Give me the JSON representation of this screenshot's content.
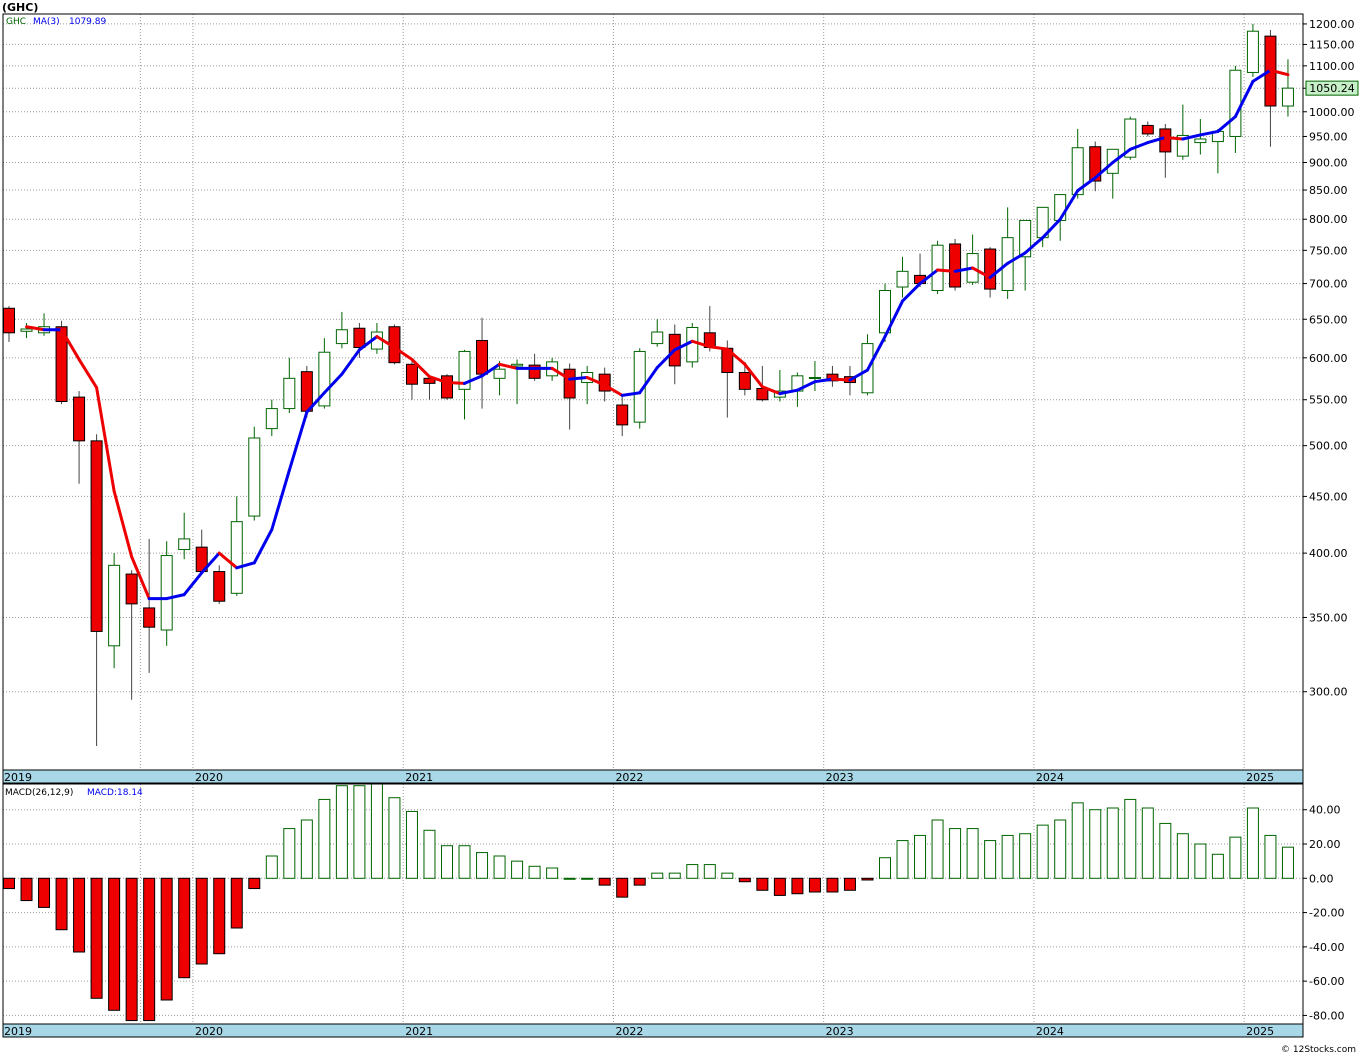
{
  "header": {
    "title": "(GHC)",
    "legend_ticker": "GHC",
    "legend_ma": "MA(3)",
    "legend_ma_value": "1079.89",
    "last_price": "1050.24",
    "macd_label": "MACD(26,12,9)",
    "macd_value": "MACD:18.14",
    "watermark": "© 12Stocks.com"
  },
  "colors": {
    "up_body": "#ffffff",
    "up_border": "#006400",
    "down_body": "#ee0000",
    "ma_up": "#0000ee",
    "ma_down": "#ee0000",
    "axis_bar": "#a8d8e8",
    "grid": "#9a9a9a",
    "price_tag_bg": "#c8f0c8"
  },
  "chart_data": [
    {
      "type": "candlestick",
      "title": "(GHC)",
      "scale": "log",
      "ylim": [
        255,
        1225
      ],
      "y_ticks": [
        300,
        350,
        400,
        450,
        500,
        550,
        600,
        650,
        700,
        750,
        800,
        850,
        900,
        950,
        1000,
        1050,
        1100,
        1150,
        1200
      ],
      "x_labels": [
        "2019",
        "2020",
        "2021",
        "2022",
        "2023",
        "2024",
        "2025"
      ],
      "x_label_months": [
        8,
        11,
        23,
        35,
        47,
        59,
        71
      ],
      "candles": [
        {
          "o": 665,
          "h": 668,
          "l": 620,
          "c": 632
        },
        {
          "o": 634,
          "h": 645,
          "l": 625,
          "c": 637
        },
        {
          "o": 632,
          "h": 658,
          "l": 628,
          "c": 640
        },
        {
          "o": 640,
          "h": 648,
          "l": 545,
          "c": 548
        },
        {
          "o": 553,
          "h": 560,
          "l": 462,
          "c": 505
        },
        {
          "o": 505,
          "h": 512,
          "l": 268,
          "c": 340
        },
        {
          "o": 330,
          "h": 400,
          "l": 315,
          "c": 390
        },
        {
          "o": 383,
          "h": 386,
          "l": 295,
          "c": 360
        },
        {
          "o": 357,
          "h": 412,
          "l": 312,
          "c": 343
        },
        {
          "o": 341,
          "h": 410,
          "l": 330,
          "c": 398
        },
        {
          "o": 403,
          "h": 435,
          "l": 395,
          "c": 412
        },
        {
          "o": 405,
          "h": 420,
          "l": 383,
          "c": 385
        },
        {
          "o": 385,
          "h": 390,
          "l": 360,
          "c": 362
        },
        {
          "o": 368,
          "h": 450,
          "l": 366,
          "c": 427
        },
        {
          "o": 432,
          "h": 520,
          "l": 428,
          "c": 508
        },
        {
          "o": 518,
          "h": 550,
          "l": 510,
          "c": 540
        },
        {
          "o": 540,
          "h": 600,
          "l": 535,
          "c": 575
        },
        {
          "o": 583,
          "h": 590,
          "l": 530,
          "c": 537
        },
        {
          "o": 543,
          "h": 625,
          "l": 540,
          "c": 607
        },
        {
          "o": 618,
          "h": 660,
          "l": 612,
          "c": 636
        },
        {
          "o": 638,
          "h": 645,
          "l": 600,
          "c": 613
        },
        {
          "o": 611,
          "h": 645,
          "l": 605,
          "c": 633
        },
        {
          "o": 640,
          "h": 643,
          "l": 592,
          "c": 594
        },
        {
          "o": 592,
          "h": 596,
          "l": 550,
          "c": 568
        },
        {
          "o": 575,
          "h": 578,
          "l": 550,
          "c": 569
        },
        {
          "o": 578,
          "h": 580,
          "l": 550,
          "c": 552
        },
        {
          "o": 562,
          "h": 610,
          "l": 528,
          "c": 608
        },
        {
          "o": 622,
          "h": 652,
          "l": 540,
          "c": 580
        },
        {
          "o": 575,
          "h": 596,
          "l": 555,
          "c": 586
        },
        {
          "o": 590,
          "h": 598,
          "l": 545,
          "c": 592
        },
        {
          "o": 591,
          "h": 605,
          "l": 572,
          "c": 575
        },
        {
          "o": 578,
          "h": 600,
          "l": 572,
          "c": 595
        },
        {
          "o": 586,
          "h": 593,
          "l": 517,
          "c": 552
        },
        {
          "o": 570,
          "h": 590,
          "l": 545,
          "c": 582
        },
        {
          "o": 580,
          "h": 588,
          "l": 548,
          "c": 560
        },
        {
          "o": 544,
          "h": 553,
          "l": 510,
          "c": 522
        },
        {
          "o": 525,
          "h": 612,
          "l": 518,
          "c": 608
        },
        {
          "o": 618,
          "h": 650,
          "l": 614,
          "c": 633
        },
        {
          "o": 630,
          "h": 643,
          "l": 568,
          "c": 590
        },
        {
          "o": 595,
          "h": 645,
          "l": 588,
          "c": 639
        },
        {
          "o": 632,
          "h": 668,
          "l": 608,
          "c": 613
        },
        {
          "o": 612,
          "h": 622,
          "l": 530,
          "c": 582
        },
        {
          "o": 582,
          "h": 595,
          "l": 555,
          "c": 562
        },
        {
          "o": 563,
          "h": 590,
          "l": 548,
          "c": 550
        },
        {
          "o": 553,
          "h": 585,
          "l": 548,
          "c": 560
        },
        {
          "o": 560,
          "h": 582,
          "l": 542,
          "c": 578
        },
        {
          "o": 575,
          "h": 596,
          "l": 560,
          "c": 576
        },
        {
          "o": 580,
          "h": 590,
          "l": 565,
          "c": 572
        },
        {
          "o": 577,
          "h": 590,
          "l": 555,
          "c": 570
        },
        {
          "o": 558,
          "h": 630,
          "l": 555,
          "c": 618
        },
        {
          "o": 632,
          "h": 700,
          "l": 620,
          "c": 690
        },
        {
          "o": 695,
          "h": 740,
          "l": 680,
          "c": 718
        },
        {
          "o": 712,
          "h": 745,
          "l": 695,
          "c": 700
        },
        {
          "o": 690,
          "h": 765,
          "l": 685,
          "c": 758
        },
        {
          "o": 760,
          "h": 768,
          "l": 690,
          "c": 695
        },
        {
          "o": 702,
          "h": 775,
          "l": 698,
          "c": 745
        },
        {
          "o": 752,
          "h": 755,
          "l": 680,
          "c": 692
        },
        {
          "o": 690,
          "h": 820,
          "l": 678,
          "c": 770
        },
        {
          "o": 740,
          "h": 798,
          "l": 690,
          "c": 798
        },
        {
          "o": 770,
          "h": 820,
          "l": 755,
          "c": 820
        },
        {
          "o": 798,
          "h": 842,
          "l": 765,
          "c": 842
        },
        {
          "o": 842,
          "h": 965,
          "l": 835,
          "c": 928
        },
        {
          "o": 930,
          "h": 940,
          "l": 848,
          "c": 866
        },
        {
          "o": 880,
          "h": 925,
          "l": 835,
          "c": 925
        },
        {
          "o": 910,
          "h": 990,
          "l": 905,
          "c": 985
        },
        {
          "o": 972,
          "h": 980,
          "l": 950,
          "c": 955
        },
        {
          "o": 965,
          "h": 975,
          "l": 872,
          "c": 920
        },
        {
          "o": 912,
          "h": 1015,
          "l": 905,
          "c": 952
        },
        {
          "o": 938,
          "h": 985,
          "l": 915,
          "c": 945
        },
        {
          "o": 940,
          "h": 965,
          "l": 880,
          "c": 960
        },
        {
          "o": 950,
          "h": 1100,
          "l": 918,
          "c": 1090
        },
        {
          "o": 1085,
          "h": 1200,
          "l": 1075,
          "c": 1182
        },
        {
          "o": 1170,
          "h": 1185,
          "l": 930,
          "c": 1012
        },
        {
          "o": 1012,
          "h": 1115,
          "l": 990,
          "c": 1050.24
        }
      ],
      "ma3": [
        null,
        640,
        636,
        636,
        598,
        564,
        455,
        397,
        364,
        364,
        367,
        384,
        400,
        388,
        392,
        420,
        475,
        536,
        558,
        580,
        610,
        627,
        613,
        598,
        577,
        570,
        569,
        578,
        592,
        587,
        587,
        587,
        574,
        576,
        567,
        555,
        558,
        588,
        610,
        621,
        614,
        611,
        592,
        565,
        557,
        561,
        571,
        574,
        573,
        585,
        627,
        675,
        700,
        720,
        718,
        723,
        709,
        730,
        746,
        770,
        800,
        849,
        872,
        900,
        925,
        938,
        948,
        945,
        953,
        960,
        990,
        1065,
        1090,
        1079.89
      ],
      "series_names": [
        "GHC",
        "MA(3)"
      ]
    },
    {
      "type": "bar",
      "title": "MACD(26,12,9)",
      "ylim": [
        -85,
        55
      ],
      "y_ticks": [
        40,
        20,
        0,
        -20,
        -40,
        -60,
        -80
      ],
      "x_labels": [
        "2019",
        "2020",
        "2021",
        "2022",
        "2023",
        "2024",
        "2025"
      ],
      "values": [
        -6,
        -13,
        -17,
        -30,
        -43,
        -70,
        -77,
        -83,
        -83,
        -71,
        -58,
        -50,
        -44,
        -29,
        -6,
        13,
        29,
        34,
        46,
        54,
        54,
        55,
        47,
        39,
        28,
        19,
        19,
        15,
        13,
        10,
        7,
        6,
        0,
        0,
        -4,
        -11,
        -4,
        3,
        3,
        8,
        8,
        3,
        -2,
        -7,
        -10,
        -9,
        -8,
        -8,
        -7,
        -1,
        12,
        22,
        25,
        34,
        29,
        29,
        22,
        25,
        26,
        31,
        34,
        44,
        40,
        41,
        46,
        41,
        32,
        26,
        20,
        14,
        24,
        41,
        25,
        18.14
      ]
    }
  ]
}
